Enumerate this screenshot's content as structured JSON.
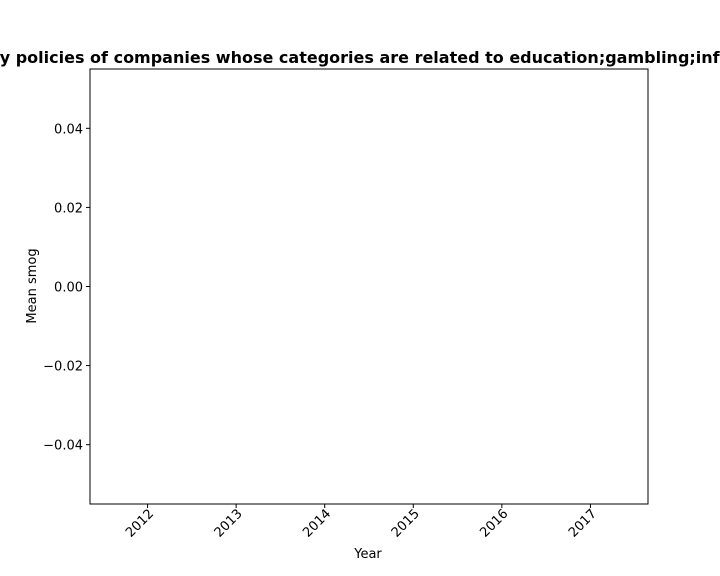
{
  "chart_data": {
    "type": "line",
    "title": "Mean smog in privacy policies of companies whose categories are related to education;gambling;informationtech",
    "xlabel": "Year",
    "ylabel": "Mean smog",
    "x_ticks": [
      "2012",
      "2013",
      "2014",
      "2015",
      "2016",
      "2017"
    ],
    "y_ticks": [
      "0.04",
      "0.02",
      "0.00",
      "−0.02",
      "−0.04"
    ],
    "y_tick_values": [
      0.04,
      0.02,
      0.0,
      -0.02,
      -0.04
    ],
    "xlim": [
      2011.35,
      2017.65
    ],
    "ylim": [
      -0.055,
      0.055
    ],
    "series": [],
    "grid": false,
    "legend": false
  }
}
